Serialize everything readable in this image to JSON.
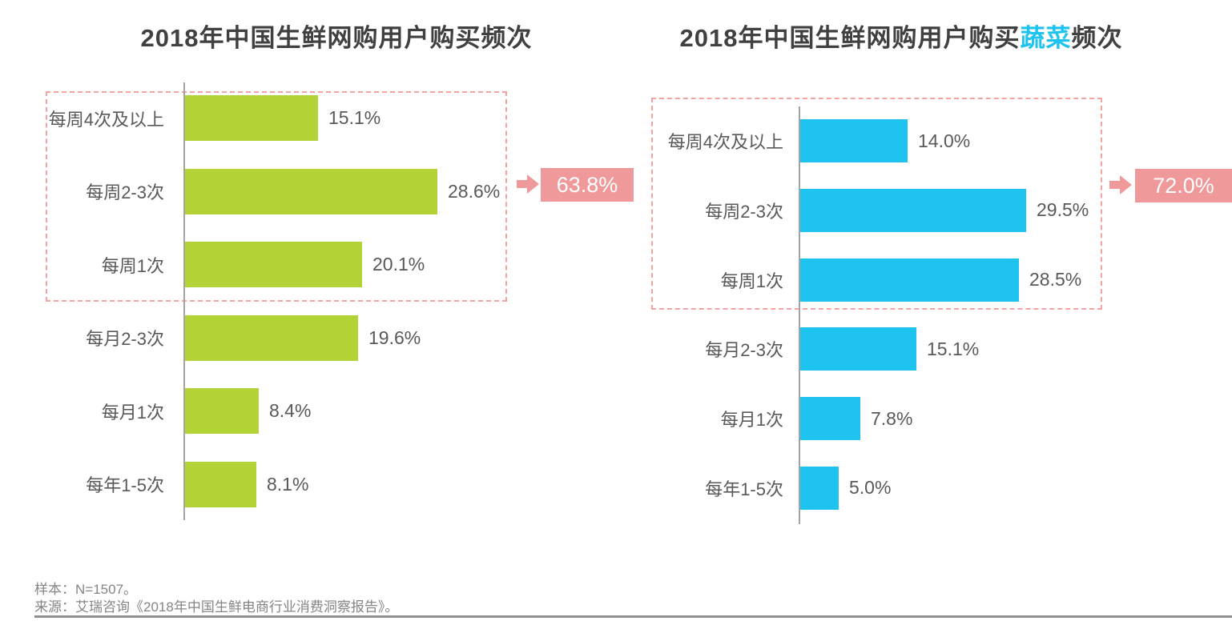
{
  "chart_data": [
    {
      "type": "bar",
      "orientation": "horizontal",
      "title": "2018年中国生鲜网购用户购买频次",
      "title_parts": {
        "prefix": "2018年中国生鲜网购用户购买",
        "highlight": "",
        "suffix": "频次"
      },
      "categories": [
        "每周4次及以上",
        "每周2-3次",
        "每周1次",
        "每月2-3次",
        "每月1次",
        "每年1-5次"
      ],
      "values": [
        15.1,
        28.6,
        20.1,
        19.6,
        8.4,
        8.1
      ],
      "value_labels": [
        "15.1%",
        "28.6%",
        "20.1%",
        "19.6%",
        "8.4%",
        "8.1%"
      ],
      "bar_color": "#b2d235",
      "xlim": [
        0,
        30
      ],
      "grid": false,
      "legend": "none",
      "highlight": {
        "rows": [
          0,
          1,
          2
        ],
        "total_label": "63.8%"
      }
    },
    {
      "type": "bar",
      "orientation": "horizontal",
      "title": "2018年中国生鲜网购用户购买蔬菜频次",
      "title_parts": {
        "prefix": "2018年中国生鲜网购用户购买",
        "highlight": "蔬菜",
        "suffix": "频次"
      },
      "categories": [
        "每周4次及以上",
        "每周2-3次",
        "每周1次",
        "每月2-3次",
        "每月1次",
        "每年1-5次"
      ],
      "values": [
        14.0,
        29.5,
        28.5,
        15.1,
        7.8,
        5.0
      ],
      "value_labels": [
        "14.0%",
        "29.5%",
        "28.5%",
        "15.1%",
        "7.8%",
        "5.0%"
      ],
      "bar_color": "#1fc3f0",
      "xlim": [
        0,
        30
      ],
      "grid": false,
      "legend": "none",
      "highlight": {
        "rows": [
          0,
          1,
          2
        ],
        "total_label": "72.0%"
      }
    }
  ],
  "footer": {
    "sample": "样本：N=1507。",
    "source": "来源：艾瑞咨询《2018年中国生鲜电商行业消费洞察报告》。"
  },
  "colors": {
    "green": "#b2d235",
    "blue": "#1fc3f0",
    "badge_pink": "#f0999b",
    "dash_pink": "#f5a3a1",
    "title_text": "#404040",
    "label_text": "#595959",
    "axis_gray": "#a3a3a3",
    "footer_text": "#858585",
    "rule_gray": "#8f8f8f"
  }
}
